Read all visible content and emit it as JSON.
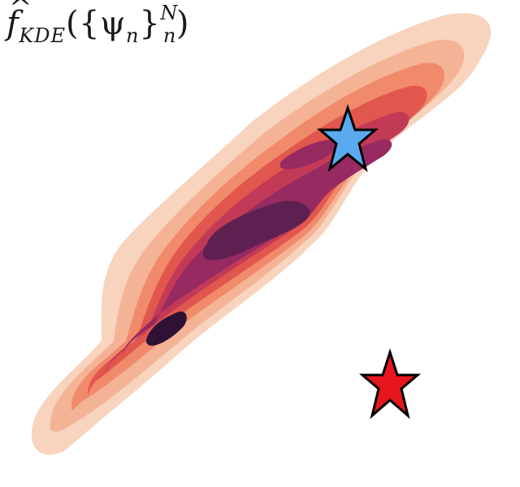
{
  "title": {
    "hat": "^",
    "f": "f",
    "sub": "KDE",
    "open": "({ψ",
    "psi_sub": "n",
    "close_brace": "}",
    "sup": "N",
    "sub_n": "n",
    "close": ")"
  },
  "density": {
    "levels": 8,
    "colors": [
      "#f8d3bd",
      "#f5b396",
      "#f08a6b",
      "#e2574d",
      "#c23a56",
      "#962a61",
      "#5e2050",
      "#2e1236"
    ]
  },
  "markers": [
    {
      "name": "blue-star",
      "color": "#5aaaf0"
    },
    {
      "name": "red-star",
      "color": "#e8151c"
    }
  ]
}
